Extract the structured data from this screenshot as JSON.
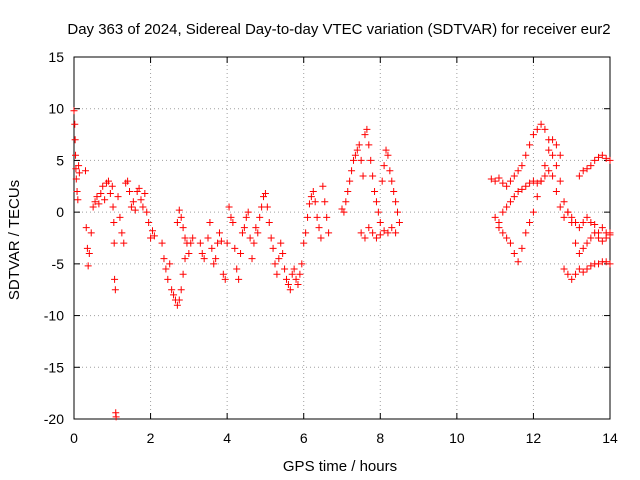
{
  "chart_data": {
    "type": "scatter",
    "title": "Day 363 of 2024, Sidereal Day-to-day VTEC variation (SDTVAR) for receiver eur2",
    "xlabel": "GPS time / hours",
    "ylabel": "SDTVAR / TECUs",
    "xlim": [
      0,
      14
    ],
    "ylim": [
      -20,
      15
    ],
    "xticks": [
      0,
      2,
      4,
      6,
      8,
      10,
      12,
      14
    ],
    "xtick_labels": [
      "0",
      "2",
      "4",
      "6",
      "8",
      "10",
      "12",
      "14"
    ],
    "yticks": [
      -20,
      -15,
      -10,
      -5,
      0,
      5,
      10,
      15
    ],
    "ytick_labels": [
      "-20",
      "-15",
      "-10",
      "-5",
      "0",
      "5",
      "10",
      "15"
    ],
    "grid": true,
    "marker": "+",
    "series": [
      {
        "name": "SDTVAR",
        "color": "#ff0000",
        "points": [
          [
            0.0,
            9.8
          ],
          [
            0.02,
            8.5
          ],
          [
            0.03,
            7.0
          ],
          [
            0.04,
            5.5
          ],
          [
            0.05,
            4.2
          ],
          [
            0.06,
            3.2
          ],
          [
            0.08,
            2.0
          ],
          [
            0.1,
            1.2
          ],
          [
            0.12,
            4.5
          ],
          [
            0.14,
            3.8
          ],
          [
            0.3,
            4.0
          ],
          [
            0.32,
            -1.5
          ],
          [
            0.35,
            -3.5
          ],
          [
            0.37,
            -5.2
          ],
          [
            0.4,
            -4.0
          ],
          [
            0.45,
            -2.0
          ],
          [
            0.5,
            0.5
          ],
          [
            0.55,
            1.0
          ],
          [
            0.6,
            1.5
          ],
          [
            0.65,
            0.8
          ],
          [
            0.7,
            1.8
          ],
          [
            0.75,
            2.5
          ],
          [
            0.8,
            1.2
          ],
          [
            0.85,
            2.8
          ],
          [
            0.9,
            3.0
          ],
          [
            0.95,
            1.8
          ],
          [
            1.0,
            2.5
          ],
          [
            1.02,
            0.5
          ],
          [
            1.04,
            -1.0
          ],
          [
            1.05,
            -3.0
          ],
          [
            1.06,
            -6.5
          ],
          [
            1.08,
            -7.5
          ],
          [
            1.09,
            -19.4
          ],
          [
            1.1,
            -19.8
          ],
          [
            1.15,
            1.5
          ],
          [
            1.2,
            -0.5
          ],
          [
            1.25,
            -2.0
          ],
          [
            1.3,
            -3.0
          ],
          [
            1.35,
            2.8
          ],
          [
            1.4,
            3.0
          ],
          [
            1.45,
            2.0
          ],
          [
            1.5,
            0.5
          ],
          [
            1.55,
            1.0
          ],
          [
            1.6,
            0.2
          ],
          [
            1.65,
            2.0
          ],
          [
            1.7,
            2.3
          ],
          [
            1.75,
            1.2
          ],
          [
            1.8,
            0.5
          ],
          [
            1.85,
            1.8
          ],
          [
            1.9,
            0.0
          ],
          [
            1.95,
            -1.0
          ],
          [
            2.0,
            -2.5
          ],
          [
            2.05,
            -1.8
          ],
          [
            2.1,
            -2.3
          ],
          [
            2.3,
            -3.0
          ],
          [
            2.35,
            -4.5
          ],
          [
            2.4,
            -5.5
          ],
          [
            2.45,
            -6.5
          ],
          [
            2.5,
            -5.0
          ],
          [
            2.55,
            -7.5
          ],
          [
            2.6,
            -8.0
          ],
          [
            2.65,
            -8.5
          ],
          [
            2.7,
            -9.0
          ],
          [
            2.75,
            -8.5
          ],
          [
            2.8,
            -7.5
          ],
          [
            2.85,
            -6.0
          ],
          [
            2.9,
            -4.5
          ],
          [
            2.95,
            -3.0
          ],
          [
            2.7,
            -1.0
          ],
          [
            2.75,
            0.2
          ],
          [
            2.8,
            -0.5
          ],
          [
            2.85,
            -1.5
          ],
          [
            2.9,
            -2.5
          ],
          [
            3.0,
            -4.0
          ],
          [
            3.05,
            -3.0
          ],
          [
            3.1,
            -2.5
          ],
          [
            3.3,
            -3.0
          ],
          [
            3.35,
            -4.0
          ],
          [
            3.4,
            -4.5
          ],
          [
            3.5,
            -2.5
          ],
          [
            3.55,
            -1.0
          ],
          [
            3.6,
            -3.5
          ],
          [
            3.65,
            -5.0
          ],
          [
            3.7,
            -4.5
          ],
          [
            3.75,
            -3.0
          ],
          [
            3.8,
            -2.0
          ],
          [
            3.85,
            -2.8
          ],
          [
            3.9,
            -6.0
          ],
          [
            3.95,
            -6.5
          ],
          [
            4.0,
            -3.0
          ],
          [
            4.05,
            0.5
          ],
          [
            4.1,
            -0.5
          ],
          [
            4.15,
            -1.0
          ],
          [
            4.2,
            -3.5
          ],
          [
            4.25,
            -5.5
          ],
          [
            4.3,
            -6.5
          ],
          [
            4.35,
            -4.0
          ],
          [
            4.4,
            -2.0
          ],
          [
            4.45,
            -1.5
          ],
          [
            4.5,
            -0.5
          ],
          [
            4.55,
            0.0
          ],
          [
            4.6,
            -2.5
          ],
          [
            4.65,
            -4.5
          ],
          [
            4.7,
            -3.0
          ],
          [
            4.75,
            -1.5
          ],
          [
            4.8,
            -2.0
          ],
          [
            4.85,
            -0.5
          ],
          [
            4.9,
            0.5
          ],
          [
            4.95,
            1.5
          ],
          [
            5.0,
            1.8
          ],
          [
            5.05,
            0.5
          ],
          [
            5.1,
            -1.0
          ],
          [
            5.15,
            -2.5
          ],
          [
            5.2,
            -3.5
          ],
          [
            5.25,
            -5.0
          ],
          [
            5.3,
            -6.0
          ],
          [
            5.35,
            -4.5
          ],
          [
            5.4,
            -3.0
          ],
          [
            5.45,
            -4.0
          ],
          [
            5.5,
            -5.5
          ],
          [
            5.55,
            -6.5
          ],
          [
            5.6,
            -7.0
          ],
          [
            5.65,
            -7.5
          ],
          [
            5.7,
            -6.0
          ],
          [
            5.75,
            -5.5
          ],
          [
            5.8,
            -6.5
          ],
          [
            5.85,
            -7.0
          ],
          [
            5.9,
            -6.0
          ],
          [
            5.95,
            -5.0
          ],
          [
            6.0,
            -3.0
          ],
          [
            6.05,
            -2.0
          ],
          [
            6.1,
            -0.5
          ],
          [
            6.15,
            0.8
          ],
          [
            6.2,
            1.5
          ],
          [
            6.25,
            2.0
          ],
          [
            6.3,
            1.0
          ],
          [
            6.35,
            -0.5
          ],
          [
            6.4,
            -1.5
          ],
          [
            6.45,
            -2.5
          ],
          [
            6.5,
            2.5
          ],
          [
            6.55,
            1.0
          ],
          [
            6.6,
            -0.5
          ],
          [
            6.65,
            -2.0
          ],
          [
            7.0,
            0.3
          ],
          [
            7.05,
            0.0
          ],
          [
            7.1,
            1.0
          ],
          [
            7.15,
            2.0
          ],
          [
            7.2,
            3.0
          ],
          [
            7.25,
            4.0
          ],
          [
            7.3,
            5.0
          ],
          [
            7.35,
            5.5
          ],
          [
            7.4,
            6.0
          ],
          [
            7.45,
            6.5
          ],
          [
            7.5,
            5.0
          ],
          [
            7.55,
            3.5
          ],
          [
            7.6,
            7.5
          ],
          [
            7.65,
            8.0
          ],
          [
            7.7,
            6.5
          ],
          [
            7.75,
            5.0
          ],
          [
            7.8,
            3.5
          ],
          [
            7.85,
            2.0
          ],
          [
            7.9,
            1.0
          ],
          [
            7.95,
            0.0
          ],
          [
            8.0,
            -1.0
          ],
          [
            8.05,
            3.0
          ],
          [
            8.1,
            4.5
          ],
          [
            8.15,
            6.0
          ],
          [
            8.2,
            5.5
          ],
          [
            8.25,
            4.0
          ],
          [
            8.3,
            3.0
          ],
          [
            8.35,
            2.0
          ],
          [
            8.4,
            1.0
          ],
          [
            8.45,
            0.0
          ],
          [
            8.5,
            -1.0
          ],
          [
            7.5,
            -2.0
          ],
          [
            7.6,
            -2.5
          ],
          [
            7.7,
            -1.5
          ],
          [
            7.8,
            -2.0
          ],
          [
            7.9,
            -2.5
          ],
          [
            8.0,
            -2.2
          ],
          [
            8.1,
            -1.8
          ],
          [
            8.2,
            -2.0
          ],
          [
            8.3,
            -1.5
          ],
          [
            8.4,
            -2.0
          ],
          [
            10.9,
            3.2
          ],
          [
            11.0,
            3.0
          ],
          [
            11.1,
            3.3
          ],
          [
            11.2,
            2.8
          ],
          [
            11.3,
            2.5
          ],
          [
            11.4,
            3.0
          ],
          [
            11.5,
            3.5
          ],
          [
            11.6,
            4.0
          ],
          [
            11.7,
            4.5
          ],
          [
            11.8,
            5.5
          ],
          [
            11.9,
            6.5
          ],
          [
            12.0,
            7.5
          ],
          [
            12.1,
            8.0
          ],
          [
            12.2,
            8.5
          ],
          [
            12.3,
            8.0
          ],
          [
            12.4,
            7.0
          ],
          [
            12.5,
            5.5
          ],
          [
            12.6,
            4.5
          ],
          [
            12.7,
            3.0
          ],
          [
            12.8,
            1.0
          ],
          [
            12.9,
            0.0
          ],
          [
            13.0,
            -1.0
          ],
          [
            13.1,
            -3.0
          ],
          [
            13.2,
            -4.0
          ],
          [
            13.3,
            -3.5
          ],
          [
            13.4,
            -3.0
          ],
          [
            13.5,
            -2.5
          ],
          [
            13.6,
            -2.0
          ],
          [
            13.7,
            -2.5
          ],
          [
            13.8,
            -1.5
          ],
          [
            13.9,
            -2.0
          ],
          [
            14.0,
            -2.2
          ],
          [
            11.0,
            -0.5
          ],
          [
            11.1,
            -1.0
          ],
          [
            11.2,
            0.0
          ],
          [
            11.3,
            0.5
          ],
          [
            11.4,
            1.0
          ],
          [
            11.5,
            1.5
          ],
          [
            11.6,
            2.0
          ],
          [
            11.7,
            2.2
          ],
          [
            11.8,
            2.5
          ],
          [
            11.9,
            2.8
          ],
          [
            12.0,
            3.0
          ],
          [
            12.1,
            2.8
          ],
          [
            12.2,
            3.0
          ],
          [
            12.3,
            3.5
          ],
          [
            12.4,
            4.0
          ],
          [
            12.5,
            3.5
          ],
          [
            12.6,
            2.0
          ],
          [
            12.7,
            0.5
          ],
          [
            12.8,
            -0.5
          ],
          [
            12.9,
            0.0
          ],
          [
            13.0,
            -0.5
          ],
          [
            13.1,
            -1.0
          ],
          [
            13.2,
            -1.5
          ],
          [
            13.3,
            -1.0
          ],
          [
            13.4,
            -0.5
          ],
          [
            13.5,
            -1.0
          ],
          [
            13.6,
            -1.2
          ],
          [
            13.7,
            -2.0
          ],
          [
            13.8,
            -2.8
          ],
          [
            13.9,
            -2.5
          ],
          [
            14.0,
            -2.0
          ],
          [
            11.1,
            -1.5
          ],
          [
            11.2,
            -2.0
          ],
          [
            11.3,
            -2.5
          ],
          [
            11.4,
            -3.0
          ],
          [
            11.5,
            -4.0
          ],
          [
            11.6,
            -4.8
          ],
          [
            11.7,
            -3.5
          ],
          [
            11.8,
            -2.0
          ],
          [
            11.9,
            -1.0
          ],
          [
            12.0,
            0.0
          ],
          [
            12.1,
            1.5
          ],
          [
            12.2,
            3.0
          ],
          [
            12.3,
            4.5
          ],
          [
            12.4,
            6.0
          ],
          [
            12.5,
            7.0
          ],
          [
            12.6,
            6.5
          ],
          [
            12.7,
            5.5
          ],
          [
            12.8,
            -5.5
          ],
          [
            12.9,
            -6.0
          ],
          [
            13.0,
            -6.5
          ],
          [
            13.1,
            -6.0
          ],
          [
            13.2,
            -5.5
          ],
          [
            13.3,
            -5.8
          ],
          [
            13.4,
            -5.5
          ],
          [
            13.5,
            -5.2
          ],
          [
            13.6,
            -5.0
          ],
          [
            13.7,
            -5.0
          ],
          [
            13.8,
            -4.8
          ],
          [
            13.9,
            -4.8
          ],
          [
            14.0,
            -5.0
          ],
          [
            13.2,
            3.5
          ],
          [
            13.3,
            4.0
          ],
          [
            13.4,
            4.2
          ],
          [
            13.5,
            4.5
          ],
          [
            13.6,
            5.0
          ],
          [
            13.7,
            5.3
          ],
          [
            13.8,
            5.5
          ],
          [
            13.9,
            5.2
          ],
          [
            14.0,
            5.0
          ]
        ]
      }
    ]
  }
}
